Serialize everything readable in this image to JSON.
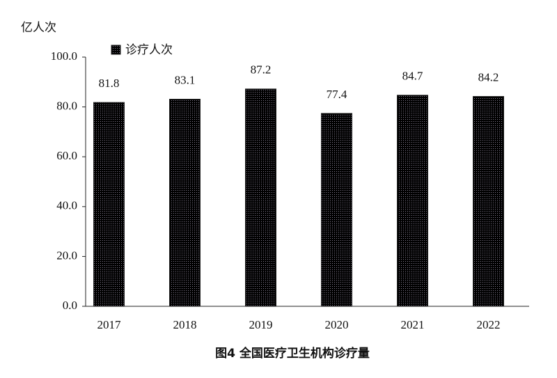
{
  "chart_data": {
    "type": "bar",
    "title": "图4  全国医疗卫生机构诊疗量",
    "y_axis_label": "亿人次",
    "categories": [
      "2017",
      "2018",
      "2019",
      "2020",
      "2021",
      "2022"
    ],
    "series": [
      {
        "name": "诊疗人次",
        "color": "#cdc5dc",
        "values": [
          81.8,
          83.1,
          87.2,
          77.4,
          84.7,
          84.2
        ]
      }
    ],
    "ylim": [
      0,
      100
    ],
    "yticks": [
      {
        "value": 0,
        "label": "0.0"
      },
      {
        "value": 20,
        "label": "20.0"
      },
      {
        "value": 40,
        "label": "40.0"
      },
      {
        "value": 60,
        "label": "60.0"
      },
      {
        "value": 80,
        "label": "80.0"
      },
      {
        "value": 100,
        "label": "100.0"
      }
    ],
    "legend": "top-left",
    "grid": false
  }
}
